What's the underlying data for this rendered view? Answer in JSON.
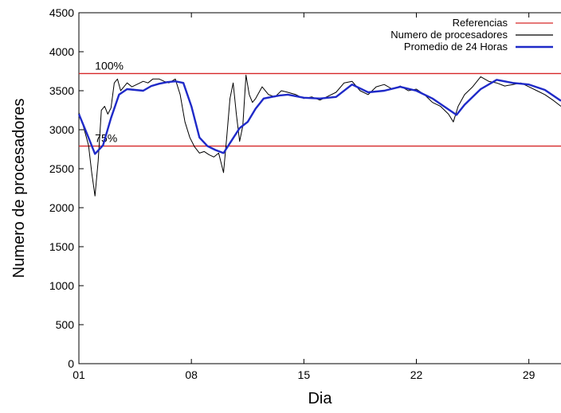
{
  "chart_data": {
    "type": "line",
    "title": "",
    "xlabel": "Dia",
    "ylabel": "Numero de procesadores",
    "xlim": [
      1,
      31
    ],
    "ylim": [
      0,
      4500
    ],
    "x_ticks": [
      {
        "value": 1,
        "label": "01"
      },
      {
        "value": 8,
        "label": "08"
      },
      {
        "value": 15,
        "label": "15"
      },
      {
        "value": 22,
        "label": "22"
      },
      {
        "value": 29,
        "label": "29"
      }
    ],
    "y_ticks": [
      0,
      500,
      1000,
      1500,
      2000,
      2500,
      3000,
      3500,
      4000,
      4500
    ],
    "grid": false,
    "legend_position": "top-right",
    "series": [
      {
        "name": "Referencias",
        "color": "#d62728",
        "style": "hline",
        "lines": [
          {
            "y": 3720,
            "label": "100%"
          },
          {
            "y": 2790,
            "label": "75%"
          }
        ]
      },
      {
        "name": "Numero de procesadores",
        "color": "#000000",
        "x": [
          1.0,
          1.2,
          1.4,
          1.6,
          1.8,
          2.0,
          2.2,
          2.4,
          2.6,
          2.8,
          3.0,
          3.2,
          3.4,
          3.6,
          3.8,
          4.0,
          4.3,
          4.6,
          5.0,
          5.3,
          5.6,
          6.0,
          6.3,
          6.6,
          7.0,
          7.3,
          7.6,
          7.9,
          8.2,
          8.5,
          8.8,
          9.1,
          9.4,
          9.7,
          10.0,
          10.2,
          10.4,
          10.6,
          10.8,
          11.0,
          11.2,
          11.4,
          11.6,
          11.8,
          12.0,
          12.4,
          12.8,
          13.2,
          13.6,
          14.0,
          14.5,
          15.0,
          15.5,
          16.0,
          16.5,
          17.0,
          17.5,
          18.0,
          18.5,
          19.0,
          19.5,
          20.0,
          20.5,
          21.0,
          21.5,
          22.0,
          22.5,
          23.0,
          23.5,
          24.0,
          24.3,
          24.6,
          25.0,
          25.5,
          26.0,
          26.5,
          27.0,
          27.5,
          28.0,
          28.5,
          29.0,
          29.5,
          30.0,
          30.5,
          31.0
        ],
        "values": [
          3220,
          3100,
          2950,
          2800,
          2450,
          2150,
          2600,
          3250,
          3300,
          3200,
          3280,
          3600,
          3650,
          3500,
          3550,
          3600,
          3550,
          3580,
          3620,
          3600,
          3650,
          3650,
          3620,
          3600,
          3650,
          3450,
          3100,
          2900,
          2780,
          2700,
          2720,
          2680,
          2650,
          2700,
          2450,
          2900,
          3400,
          3600,
          3200,
          2850,
          3050,
          3700,
          3450,
          3350,
          3400,
          3550,
          3450,
          3420,
          3500,
          3480,
          3450,
          3400,
          3420,
          3380,
          3430,
          3480,
          3600,
          3620,
          3500,
          3450,
          3550,
          3580,
          3520,
          3560,
          3500,
          3520,
          3450,
          3350,
          3300,
          3200,
          3100,
          3300,
          3450,
          3550,
          3680,
          3620,
          3600,
          3560,
          3580,
          3600,
          3550,
          3500,
          3450,
          3380,
          3300
        ]
      },
      {
        "name": "Promedio de 24 Horas",
        "color": "#1f2ac8",
        "x": [
          1.0,
          1.5,
          2.0,
          2.5,
          3.0,
          3.5,
          4.0,
          4.5,
          5.0,
          5.5,
          6.0,
          6.5,
          7.0,
          7.5,
          8.0,
          8.5,
          9.0,
          9.5,
          10.0,
          10.5,
          11.0,
          11.5,
          12.0,
          12.5,
          13.0,
          13.5,
          14.0,
          15.0,
          16.0,
          17.0,
          18.0,
          19.0,
          20.0,
          21.0,
          22.0,
          23.0,
          24.0,
          24.5,
          25.0,
          26.0,
          27.0,
          28.0,
          29.0,
          30.0,
          31.0
        ],
        "values": [
          3200,
          2950,
          2690,
          2800,
          3150,
          3450,
          3520,
          3510,
          3500,
          3560,
          3590,
          3610,
          3620,
          3600,
          3300,
          2900,
          2790,
          2740,
          2700,
          2860,
          3020,
          3100,
          3270,
          3400,
          3420,
          3440,
          3450,
          3410,
          3400,
          3420,
          3580,
          3480,
          3500,
          3550,
          3500,
          3400,
          3260,
          3190,
          3320,
          3520,
          3640,
          3600,
          3580,
          3510,
          3370
        ]
      }
    ]
  }
}
